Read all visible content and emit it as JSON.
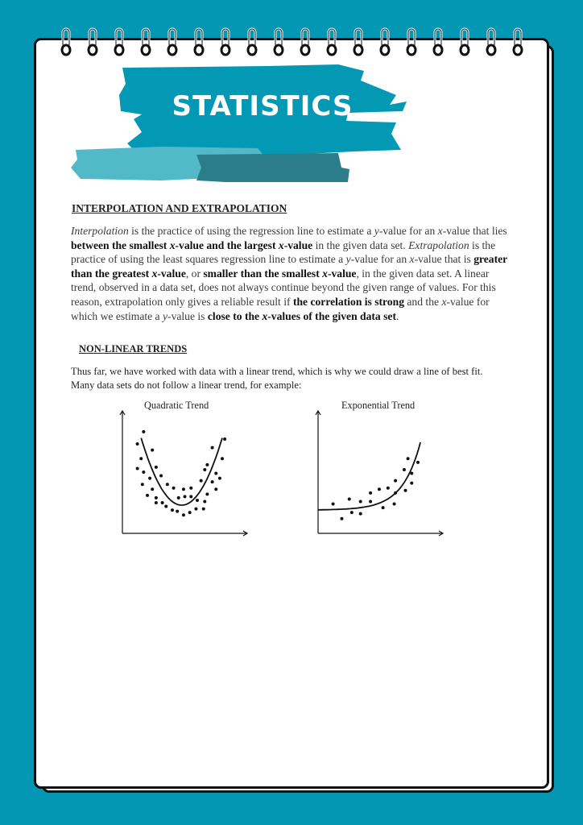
{
  "colors": {
    "background": "#0397b3",
    "brush_main": "#0399b4",
    "brush_light": "#52b9c9",
    "brush_dark": "#2b7d8b"
  },
  "header": {
    "title": "STATISTICS",
    "binding_rings": 18
  },
  "section1": {
    "heading": "INTERPOLATION AND EXTRAPOLATION",
    "paragraph": [
      {
        "t": "Interpolation",
        "s": "i"
      },
      {
        "t": " is the practice of using the regression line to estimate a "
      },
      {
        "t": "y",
        "s": "i"
      },
      {
        "t": "-value for an "
      },
      {
        "t": "x",
        "s": "i"
      },
      {
        "t": "-value that lies "
      },
      {
        "t": "between the smallest ",
        "s": "b"
      },
      {
        "t": "x",
        "s": "bi"
      },
      {
        "t": "-value and the largest ",
        "s": "b"
      },
      {
        "t": "x",
        "s": "bi"
      },
      {
        "t": "-value",
        "s": "b"
      },
      {
        "t": " in the given data set. "
      },
      {
        "t": "Extrapolation",
        "s": "i"
      },
      {
        "t": " is the practice of using the least squares regression line to estimate a "
      },
      {
        "t": "y",
        "s": "i"
      },
      {
        "t": "-value for an "
      },
      {
        "t": "x",
        "s": "i"
      },
      {
        "t": "-value that is "
      },
      {
        "t": "greater than the greatest ",
        "s": "b"
      },
      {
        "t": "x",
        "s": "bi"
      },
      {
        "t": "-value",
        "s": "b"
      },
      {
        "t": ", or "
      },
      {
        "t": "smaller than the smallest ",
        "s": "b"
      },
      {
        "t": "x",
        "s": "bi"
      },
      {
        "t": "-value",
        "s": "b"
      },
      {
        "t": ", in the given data set. A linear trend, observed in a data set, does not always continue beyond the given range of values. For this reason, extrapolation only gives a reliable result if "
      },
      {
        "t": "the correlation is strong",
        "s": "b"
      },
      {
        "t": " and the "
      },
      {
        "t": "x",
        "s": "i"
      },
      {
        "t": "-value for which we estimate a "
      },
      {
        "t": "y",
        "s": "i"
      },
      {
        "t": "-value is "
      },
      {
        "t": "close to the ",
        "s": "b"
      },
      {
        "t": "x",
        "s": "bi"
      },
      {
        "t": "-values of the given data set",
        "s": "b"
      },
      {
        "t": "."
      }
    ]
  },
  "section2": {
    "heading": "NON-LINEAR TRENDS",
    "paragraph": "Thus far, we have worked with data with a linear trend, which is why we could draw a line of best fit. Many data sets do not follow a linear trend, for example:"
  },
  "chart_data": [
    {
      "type": "scatter",
      "title": "Quadratic Trend",
      "xlim": [
        0,
        10
      ],
      "ylim": [
        0,
        10
      ],
      "grid": false,
      "axis_ticks": false,
      "trend": {
        "kind": "quadratic",
        "vertex": [
          4.75,
          2.3
        ],
        "k": 0.52,
        "x_range": [
          1.5,
          8.0
        ]
      },
      "points": [
        [
          1.2,
          7.3
        ],
        [
          1.7,
          8.3
        ],
        [
          1.5,
          6.1
        ],
        [
          1.2,
          5.3
        ],
        [
          1.7,
          5.0
        ],
        [
          2.4,
          6.8
        ],
        [
          1.6,
          4.0
        ],
        [
          2.7,
          5.4
        ],
        [
          2.2,
          4.5
        ],
        [
          3.1,
          4.7
        ],
        [
          2.4,
          3.6
        ],
        [
          2.0,
          3.1
        ],
        [
          2.7,
          2.9
        ],
        [
          2.7,
          2.5
        ],
        [
          3.2,
          2.5
        ],
        [
          3.6,
          4.0
        ],
        [
          3.5,
          2.2
        ],
        [
          4.1,
          3.7
        ],
        [
          4.0,
          1.9
        ],
        [
          4.4,
          1.8
        ],
        [
          4.5,
          2.9
        ],
        [
          4.9,
          3.6
        ],
        [
          4.9,
          1.5
        ],
        [
          5.0,
          3.0
        ],
        [
          5.4,
          1.7
        ],
        [
          5.5,
          3.7
        ],
        [
          5.5,
          3.0
        ],
        [
          6.0,
          2.7
        ],
        [
          5.9,
          2.0
        ],
        [
          6.5,
          2.0
        ],
        [
          6.6,
          2.6
        ],
        [
          6.3,
          4.3
        ],
        [
          6.6,
          5.2
        ],
        [
          6.8,
          5.6
        ],
        [
          6.8,
          3.2
        ],
        [
          7.2,
          4.2
        ],
        [
          7.5,
          3.6
        ],
        [
          7.5,
          4.9
        ],
        [
          7.8,
          4.5
        ],
        [
          7.2,
          7.0
        ],
        [
          8.0,
          6.1
        ],
        [
          8.2,
          7.7
        ]
      ]
    },
    {
      "type": "scatter",
      "title": "Exponential Trend",
      "xlim": [
        0,
        10
      ],
      "ylim": [
        0,
        10
      ],
      "grid": false,
      "axis_ticks": false,
      "trend": {
        "kind": "exponential",
        "c": 1.9,
        "a": 0.019,
        "b": 0.692,
        "x_range": [
          0,
          8.2
        ]
      },
      "points": [
        [
          1.2,
          2.4
        ],
        [
          1.9,
          1.2
        ],
        [
          2.5,
          2.8
        ],
        [
          2.7,
          1.7
        ],
        [
          3.4,
          2.6
        ],
        [
          3.4,
          1.6
        ],
        [
          4.2,
          2.6
        ],
        [
          4.2,
          3.3
        ],
        [
          4.9,
          3.6
        ],
        [
          5.2,
          2.1
        ],
        [
          5.6,
          3.7
        ],
        [
          6.1,
          2.4
        ],
        [
          6.2,
          3.3
        ],
        [
          6.2,
          4.3
        ],
        [
          7.0,
          3.5
        ],
        [
          6.9,
          5.2
        ],
        [
          7.2,
          6.1
        ],
        [
          7.5,
          4.9
        ],
        [
          7.5,
          4.1
        ],
        [
          8.0,
          5.8
        ]
      ]
    }
  ]
}
